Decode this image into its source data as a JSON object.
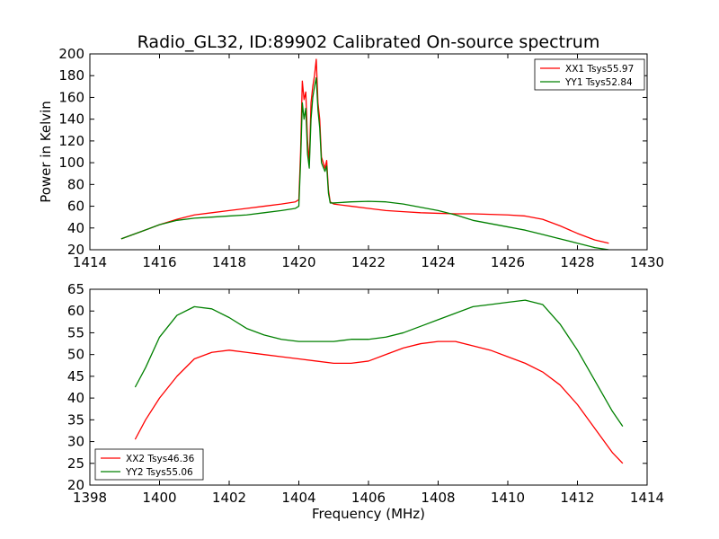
{
  "chart_data": [
    {
      "type": "line",
      "title": "Radio_GL32, ID:89902 Calibrated On-source spectrum",
      "xlabel": "",
      "ylabel": "Power in Kelvin",
      "xlim": [
        1414,
        1430
      ],
      "ylim": [
        20,
        200
      ],
      "xticks": [
        1414,
        1416,
        1418,
        1420,
        1422,
        1424,
        1426,
        1428,
        1430
      ],
      "yticks": [
        20,
        40,
        60,
        80,
        100,
        120,
        140,
        160,
        180,
        200
      ],
      "legend_position": "top-right",
      "grid": false,
      "series": [
        {
          "name": "XX1 Tsys55.97",
          "color": "#ff0000",
          "x": [
            1414.9,
            1415.5,
            1416.0,
            1416.5,
            1417.0,
            1417.5,
            1418.0,
            1418.5,
            1419.0,
            1419.5,
            1419.9,
            1420.0,
            1420.05,
            1420.1,
            1420.15,
            1420.2,
            1420.25,
            1420.3,
            1420.35,
            1420.4,
            1420.45,
            1420.5,
            1420.55,
            1420.6,
            1420.65,
            1420.7,
            1420.75,
            1420.8,
            1420.85,
            1420.9,
            1421.0,
            1421.5,
            1422.0,
            1422.5,
            1423.0,
            1423.5,
            1424.0,
            1424.5,
            1425.0,
            1425.5,
            1426.0,
            1426.5,
            1427.0,
            1427.5,
            1428.0,
            1428.5,
            1428.9
          ],
          "y": [
            30,
            37,
            43,
            48,
            52,
            54,
            56,
            58,
            60,
            62,
            64,
            66,
            110,
            175,
            158,
            165,
            120,
            100,
            155,
            170,
            180,
            195,
            155,
            140,
            105,
            100,
            95,
            102,
            75,
            64,
            62,
            60,
            58,
            56,
            55,
            54,
            53.5,
            53,
            53,
            52.5,
            52,
            51,
            48,
            42,
            35,
            29,
            26
          ]
        },
        {
          "name": "YY1 Tsys52.84",
          "color": "#008000",
          "x": [
            1414.9,
            1415.5,
            1416.0,
            1416.5,
            1417.0,
            1417.5,
            1418.0,
            1418.5,
            1419.0,
            1419.5,
            1419.9,
            1420.0,
            1420.05,
            1420.1,
            1420.15,
            1420.2,
            1420.25,
            1420.3,
            1420.35,
            1420.4,
            1420.45,
            1420.5,
            1420.55,
            1420.6,
            1420.65,
            1420.7,
            1420.75,
            1420.8,
            1420.85,
            1420.9,
            1421.0,
            1421.5,
            1422.0,
            1422.5,
            1423.0,
            1423.5,
            1424.0,
            1424.5,
            1425.0,
            1425.5,
            1426.0,
            1426.5,
            1427.0,
            1427.5,
            1428.0,
            1428.5,
            1428.9
          ],
          "y": [
            30,
            37,
            43,
            47,
            49,
            50,
            51,
            52,
            54,
            56,
            58,
            60,
            100,
            155,
            140,
            150,
            108,
            95,
            140,
            160,
            170,
            178,
            148,
            132,
            100,
            96,
            92,
            97,
            72,
            63,
            63,
            64,
            64.5,
            64,
            62,
            59,
            56,
            52,
            47,
            44,
            41,
            38,
            34,
            30,
            26,
            22,
            20
          ]
        }
      ]
    },
    {
      "type": "line",
      "title": "",
      "xlabel": "Frequency (MHz)",
      "ylabel": "",
      "xlim": [
        1398,
        1414
      ],
      "ylim": [
        20,
        65
      ],
      "xticks": [
        1398,
        1400,
        1402,
        1404,
        1406,
        1408,
        1410,
        1412,
        1414
      ],
      "yticks": [
        20,
        25,
        30,
        35,
        40,
        45,
        50,
        55,
        60,
        65
      ],
      "legend_position": "bottom-left",
      "grid": false,
      "series": [
        {
          "name": "XX2 Tsys46.36",
          "color": "#ff0000",
          "x": [
            1399.3,
            1399.6,
            1400.0,
            1400.5,
            1401.0,
            1401.5,
            1402.0,
            1402.5,
            1403.0,
            1403.5,
            1404.0,
            1404.5,
            1405.0,
            1405.5,
            1406.0,
            1406.5,
            1407.0,
            1407.5,
            1408.0,
            1408.5,
            1409.0,
            1409.5,
            1410.0,
            1410.5,
            1411.0,
            1411.5,
            1412.0,
            1412.5,
            1413.0,
            1413.3
          ],
          "y": [
            30.5,
            35,
            40,
            45,
            49,
            50.5,
            51,
            50.5,
            50,
            49.5,
            49,
            48.5,
            48,
            48,
            48.5,
            50,
            51.5,
            52.5,
            53,
            53,
            52,
            51,
            49.5,
            48,
            46,
            43,
            38.5,
            33,
            27.5,
            25
          ]
        },
        {
          "name": "YY2 Tsys55.06",
          "color": "#008000",
          "x": [
            1399.3,
            1399.6,
            1400.0,
            1400.5,
            1401.0,
            1401.5,
            1402.0,
            1402.5,
            1403.0,
            1403.5,
            1404.0,
            1404.5,
            1405.0,
            1405.5,
            1406.0,
            1406.5,
            1407.0,
            1407.5,
            1408.0,
            1408.5,
            1409.0,
            1409.5,
            1410.0,
            1410.5,
            1411.0,
            1411.5,
            1412.0,
            1412.5,
            1413.0,
            1413.3
          ],
          "y": [
            42.5,
            47,
            54,
            59,
            61,
            60.5,
            58.5,
            56,
            54.5,
            53.5,
            53,
            53,
            53,
            53.5,
            53.5,
            54,
            55,
            56.5,
            58,
            59.5,
            61,
            61.5,
            62,
            62.5,
            61.5,
            57,
            51,
            44,
            37,
            33.5
          ]
        }
      ]
    }
  ]
}
